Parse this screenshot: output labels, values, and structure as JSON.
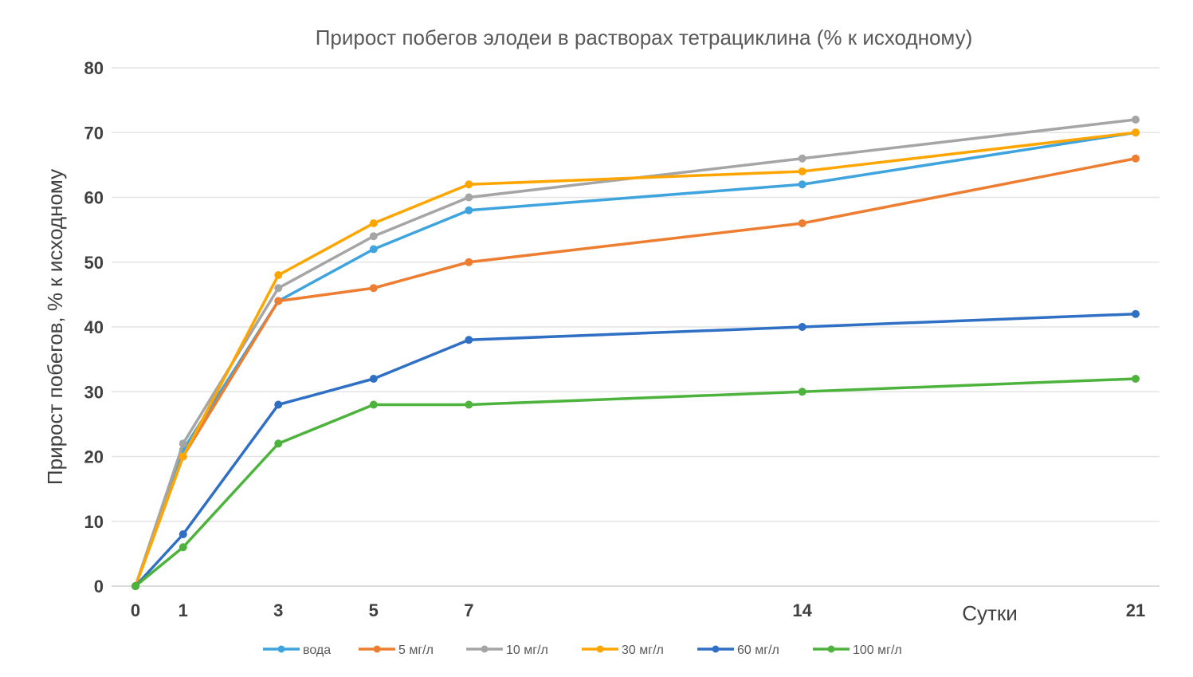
{
  "chart_data": {
    "type": "line",
    "title": "Прирост побегов элодеи в растворах тетрациклина (% к исходному)",
    "xlabel": "Сутки",
    "ylabel": "Прирост побегов, % к исходному",
    "x": [
      0,
      1,
      3,
      5,
      7,
      14,
      21
    ],
    "x_ticks": [
      "0",
      "1",
      "3",
      "5",
      "7",
      "14",
      "21"
    ],
    "y_ticks": [
      "0",
      "10",
      "20",
      "30",
      "40",
      "50",
      "60",
      "70",
      "80"
    ],
    "ylim": [
      0,
      80
    ],
    "xlim": [
      0,
      21
    ],
    "grid": "horizontal",
    "legend_position": "bottom",
    "series": [
      {
        "name": "вода",
        "color": "#3FA4DE",
        "values": [
          0,
          21,
          44,
          52,
          58,
          62,
          70
        ]
      },
      {
        "name": "5 мг/л",
        "color": "#ED7D31",
        "values": [
          0,
          20,
          44,
          46,
          50,
          56,
          66
        ]
      },
      {
        "name": "10 мг/л",
        "color": "#A5A5A5",
        "values": [
          0,
          22,
          46,
          54,
          60,
          66,
          72
        ]
      },
      {
        "name": "30 мг/л",
        "color": "#FFA500",
        "values": [
          0,
          20,
          48,
          56,
          62,
          64,
          70
        ]
      },
      {
        "name": "60 мг/л",
        "color": "#2F6FC4",
        "values": [
          0,
          8,
          28,
          32,
          38,
          40,
          42
        ]
      },
      {
        "name": "100 мг/л",
        "color": "#4DB33D",
        "values": [
          0,
          6,
          22,
          28,
          28,
          30,
          32
        ]
      }
    ]
  }
}
